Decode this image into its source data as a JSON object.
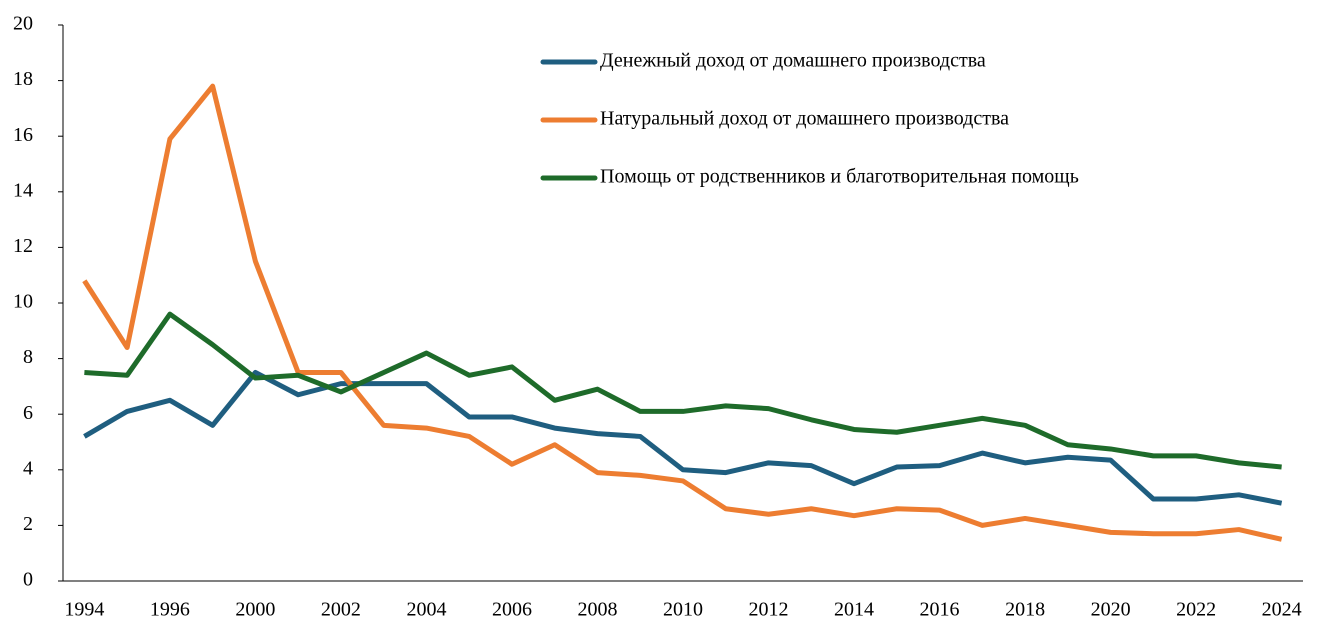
{
  "chart_data": {
    "type": "line",
    "categories": [
      "1994",
      null,
      "1996",
      null,
      "2000",
      null,
      "2002",
      null,
      "2004",
      null,
      "2006",
      null,
      "2008",
      null,
      "2010",
      null,
      "2012",
      null,
      "2014",
      null,
      "2016",
      null,
      "2018",
      null,
      "2020",
      null,
      "2022",
      null,
      "2024"
    ],
    "series": [
      {
        "name": "Денежный доход от домашнего производства",
        "color": "#1f5e80",
        "values": [
          5.2,
          6.1,
          6.5,
          5.6,
          7.5,
          6.7,
          7.1,
          7.1,
          7.1,
          5.9,
          5.9,
          5.5,
          5.3,
          5.2,
          4.0,
          3.9,
          4.25,
          4.15,
          3.5,
          4.1,
          4.15,
          4.6,
          4.25,
          4.45,
          4.35,
          2.95,
          2.95,
          3.1,
          2.8
        ]
      },
      {
        "name": "Натуральный доход от домашнего производства",
        "color": "#ed7d31",
        "values": [
          10.8,
          8.4,
          15.9,
          17.8,
          11.5,
          7.5,
          7.5,
          5.6,
          5.5,
          5.2,
          4.2,
          4.9,
          3.9,
          3.8,
          3.6,
          2.6,
          2.4,
          2.6,
          2.35,
          2.6,
          2.55,
          2.0,
          2.25,
          2.0,
          1.75,
          1.7,
          1.7,
          1.85,
          1.5
        ]
      },
      {
        "name": "Помощь от родственников и благотворительная помощь",
        "color": "#1e6b2a",
        "values": [
          7.5,
          7.4,
          9.6,
          8.5,
          7.3,
          7.4,
          6.8,
          7.5,
          8.2,
          7.4,
          7.7,
          6.5,
          6.9,
          6.1,
          6.1,
          6.3,
          6.2,
          5.8,
          5.45,
          5.35,
          5.6,
          5.85,
          5.6,
          4.9,
          4.75,
          4.5,
          4.5,
          4.25,
          4.1
        ]
      }
    ],
    "ylim": [
      0,
      20
    ],
    "yticks": [
      0,
      2,
      4,
      6,
      8,
      10,
      12,
      14,
      16,
      18,
      20
    ],
    "grid": false
  }
}
